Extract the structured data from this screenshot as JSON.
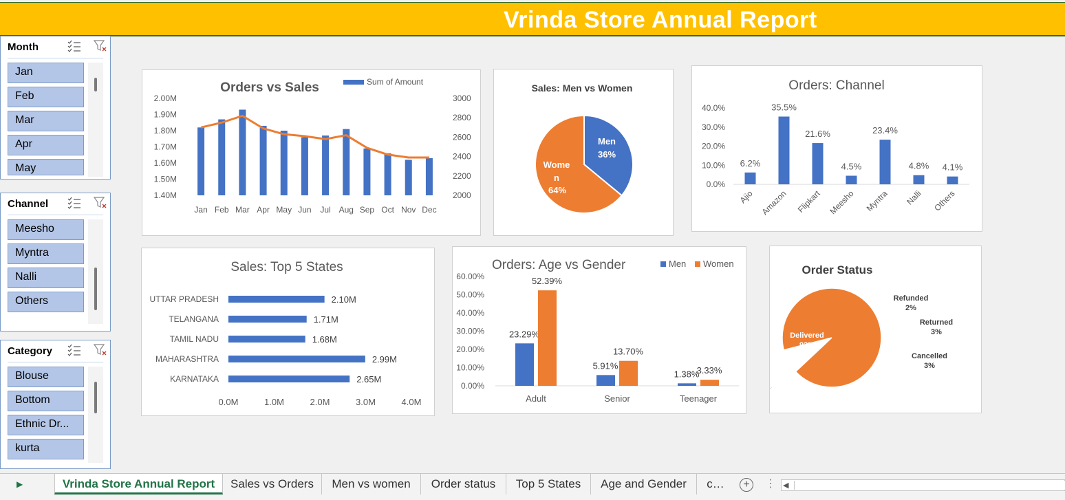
{
  "header": {
    "title": "Vrinda Store Annual Report"
  },
  "colors": {
    "blue": "#4472c4",
    "orange": "#ed7d31",
    "yellow": "#ffc000",
    "grey": "#a5a5a5",
    "header": "#ffc000"
  },
  "slicers": [
    {
      "id": "month",
      "title": "Month",
      "items": [
        "Jan",
        "Feb",
        "Mar",
        "Apr",
        "May"
      ]
    },
    {
      "id": "channel",
      "title": "Channel",
      "items": [
        "Meesho",
        "Myntra",
        "Nalli",
        "Others"
      ]
    },
    {
      "id": "category",
      "title": "Category",
      "items": [
        "Blouse",
        "Bottom",
        "Ethnic Dr...",
        "kurta"
      ]
    }
  ],
  "sheet_tabs": [
    "Vrinda Store Annual Report",
    "Sales vs Orders",
    "Men vs women",
    "Order status",
    "Top 5 States",
    "Age and Gender",
    "c…"
  ],
  "chart_data": [
    {
      "id": "orders-vs-sales",
      "type": "bar",
      "title": "Orders vs Sales",
      "categories": [
        "Jan",
        "Feb",
        "Mar",
        "Apr",
        "May",
        "Jun",
        "Jul",
        "Aug",
        "Sep",
        "Oct",
        "Nov",
        "Dec"
      ],
      "series": [
        {
          "name": "Sum of Amount",
          "type": "bar",
          "axis": "left",
          "values": [
            1.82,
            1.87,
            1.93,
            1.83,
            1.8,
            1.76,
            1.77,
            1.81,
            1.69,
            1.66,
            1.62,
            1.63
          ]
        },
        {
          "type": "line",
          "axis": "right",
          "values": [
            2700,
            2750,
            2820,
            2690,
            2630,
            2610,
            2580,
            2620,
            2490,
            2420,
            2390,
            2390
          ]
        }
      ],
      "left_ticks": [
        "2.00M",
        "1.90M",
        "1.80M",
        "1.70M",
        "1.60M",
        "1.50M",
        "1.40M"
      ],
      "right_ticks": [
        "3000",
        "2800",
        "2600",
        "2400",
        "2200",
        "2000"
      ],
      "ylim_left": [
        1.4,
        2.0
      ],
      "ylim_right": [
        2000,
        3000
      ],
      "legend": "top-right"
    },
    {
      "id": "men-vs-women",
      "type": "pie",
      "title": "Sales: Men vs Women",
      "labels": [
        "Men",
        "Women"
      ],
      "values": [
        36,
        64
      ],
      "display_labels": [
        "Men",
        "Wome n"
      ],
      "display_values": [
        "36%",
        "64%"
      ]
    },
    {
      "id": "channel",
      "type": "bar",
      "title": "Orders: Channel",
      "categories": [
        "Ajio",
        "Amazon",
        "Flipkart",
        "Meesho",
        "Myntra",
        "Nalli",
        "Others"
      ],
      "values": [
        6.2,
        35.5,
        21.6,
        4.5,
        23.4,
        4.8,
        4.1
      ],
      "value_labels": [
        "6.2%",
        "35.5%",
        "21.6%",
        "4.5%",
        "23.4%",
        "4.8%",
        "4.1%"
      ],
      "y_ticks": [
        "40.0%",
        "30.0%",
        "20.0%",
        "10.0%",
        "0.0%"
      ],
      "ylim": [
        0,
        40
      ]
    },
    {
      "id": "top5-states",
      "type": "bar",
      "orientation": "horizontal",
      "title": "Sales: Top 5 States",
      "categories": [
        "UTTAR PRADESH",
        "TELANGANA",
        "TAMIL NADU",
        "MAHARASHTRA",
        "KARNATAKA"
      ],
      "values": [
        2.1,
        1.71,
        1.68,
        2.99,
        2.65
      ],
      "value_labels": [
        "2.10M",
        "1.71M",
        "1.68M",
        "2.99M",
        "2.65M"
      ],
      "x_ticks": [
        "0.0M",
        "1.0M",
        "2.0M",
        "3.0M",
        "4.0M"
      ],
      "xlim": [
        0,
        4
      ]
    },
    {
      "id": "age-vs-gender",
      "type": "bar",
      "title": "Orders: Age vs Gender",
      "categories": [
        "Adult",
        "Senior",
        "Teenager"
      ],
      "series": [
        {
          "name": "Men",
          "values": [
            23.29,
            5.91,
            1.38
          ],
          "labels": [
            "23.29%",
            "5.91%",
            "1.38%"
          ]
        },
        {
          "name": "Women",
          "values": [
            52.39,
            13.7,
            3.33
          ],
          "labels": [
            "52.39%",
            "13.70%",
            "3.33%"
          ]
        }
      ],
      "y_ticks": [
        "60.00%",
        "50.00%",
        "40.00%",
        "30.00%",
        "20.00%",
        "10.00%",
        "0.00%"
      ],
      "ylim": [
        0,
        60
      ],
      "legend": "top-right"
    },
    {
      "id": "order-status",
      "type": "pie",
      "title": "Order Status",
      "labels": [
        "Delivered",
        "Refunded",
        "Returned",
        "Cancelled"
      ],
      "values": [
        92,
        2,
        3,
        3
      ],
      "display_values": [
        "92%",
        "2%",
        "3%",
        "3%"
      ]
    }
  ]
}
